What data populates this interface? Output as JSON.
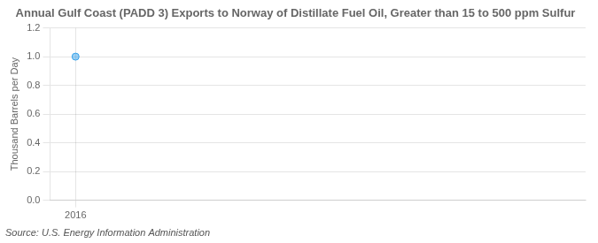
{
  "chart_data": {
    "type": "scatter",
    "title": "Annual Gulf Coast (PADD 3) Exports to Norway of Distillate Fuel Oil, Greater than 15 to 500 ppm Sulfur",
    "ylabel": "Thousand Barrels per Day",
    "source": "Source: U.S. Energy Information Administration",
    "x": [
      2016
    ],
    "values": [
      1.0
    ],
    "xlim": [
      2015.7,
      2022.0
    ],
    "xticks": [
      2016
    ],
    "ylim": [
      0.0,
      1.2
    ],
    "yticks": [
      {
        "value": 0.0,
        "label": "0.0"
      },
      {
        "value": 0.2,
        "label": "0.2"
      },
      {
        "value": 0.4,
        "label": "0.4"
      },
      {
        "value": 0.6,
        "label": "0.6"
      },
      {
        "value": 0.8,
        "label": "0.8"
      },
      {
        "value": 1.0,
        "label": "1.0"
      },
      {
        "value": 1.2,
        "label": "1.2"
      }
    ],
    "grid": true
  }
}
